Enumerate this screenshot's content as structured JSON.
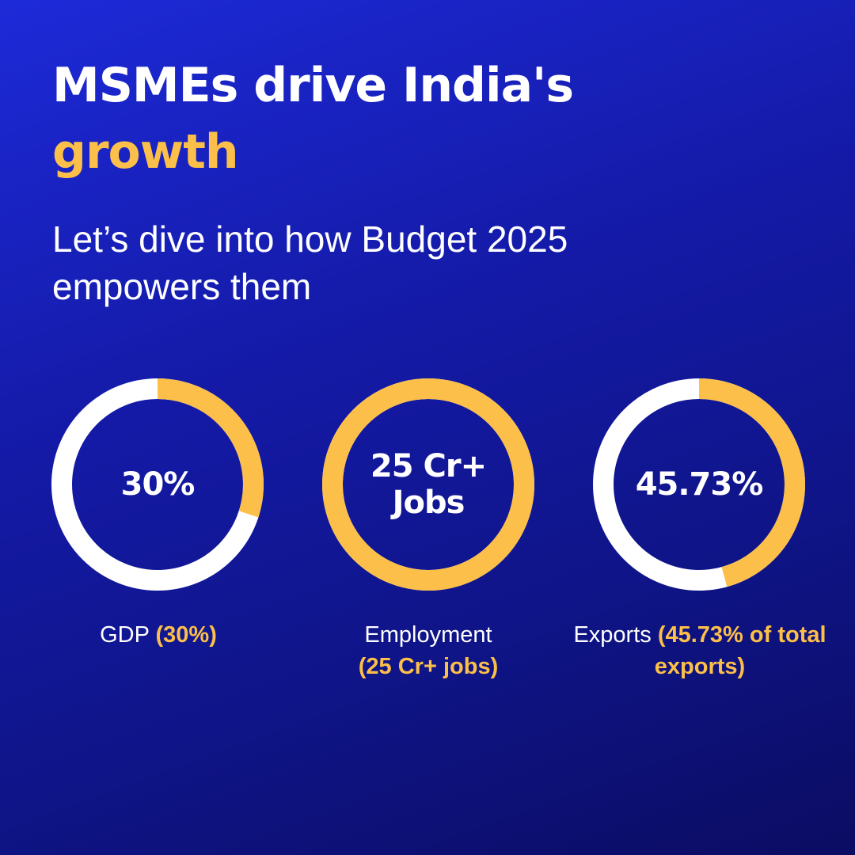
{
  "title": {
    "line1": "MSMEs drive India's",
    "line2": "growth"
  },
  "subtitle": {
    "line1": "Let’s dive into how Budget 2025",
    "line2": "empowers them"
  },
  "colors": {
    "accent": "#fcbf49",
    "ring_base": "#ffffff",
    "background_top": "#1d2ad8",
    "background_bottom": "#0b0c62"
  },
  "stats": [
    {
      "value_line1": "30%",
      "value_line2": "",
      "fill_fraction": 0.3,
      "caption_label": "GDP ",
      "caption_highlight": "(30%)"
    },
    {
      "value_line1": "25 Cr+",
      "value_line2": "Jobs",
      "fill_fraction": 1.0,
      "caption_label": "Employment",
      "caption_highlight": "(25 Cr+ jobs)"
    },
    {
      "value_line1": "45.73%",
      "value_line2": "",
      "fill_fraction": 0.4573,
      "caption_label": "Exports ",
      "caption_highlight": "(45.73% of total exports)"
    }
  ]
}
